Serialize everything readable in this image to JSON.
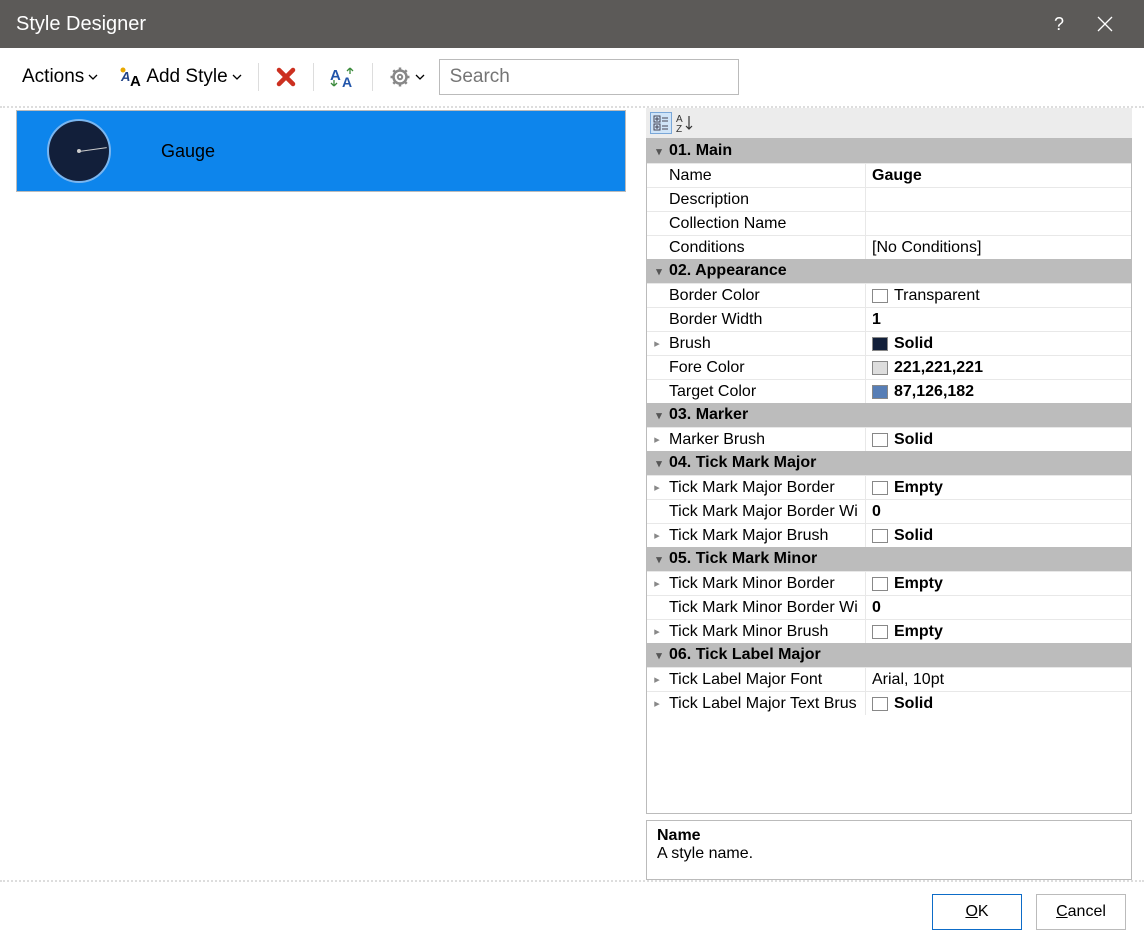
{
  "window": {
    "title": "Style Designer"
  },
  "toolbar": {
    "actions_label": "Actions",
    "add_style_label": "Add Style",
    "search_placeholder": "Search"
  },
  "colors": {
    "selection_bg": "#0d85ec",
    "category_bg": "#bcbcbc",
    "brush_swatch": "#121f3a",
    "fore_swatch": "#dddddd",
    "target_swatch": "#577eb6",
    "transparent_swatch": "#ffffff",
    "marker_swatch": "#ffffff"
  },
  "leftPanel": {
    "gauge_label": "Gauge"
  },
  "propertyGrid": {
    "categories": [
      {
        "title": "01. Main",
        "rows": [
          {
            "label": "Name",
            "value": "Gauge",
            "bold": true
          },
          {
            "label": "Description",
            "value": ""
          },
          {
            "label": "Collection Name",
            "value": ""
          },
          {
            "label": "Conditions",
            "value": "[No Conditions]"
          }
        ]
      },
      {
        "title": "02. Appearance",
        "rows": [
          {
            "label": "Border Color",
            "value": "Transparent",
            "swatch": "#ffffff"
          },
          {
            "label": "Border Width",
            "value": "1",
            "bold": true
          },
          {
            "label": "Brush",
            "value": "Solid",
            "bold": true,
            "expandable": true,
            "swatch": "#121f3a"
          },
          {
            "label": "Fore Color",
            "value": "221,221,221",
            "bold": true,
            "swatch": "#dddddd"
          },
          {
            "label": "Target Color",
            "value": "87,126,182",
            "bold": true,
            "swatch": "#577eb6"
          }
        ]
      },
      {
        "title": "03. Marker",
        "rows": [
          {
            "label": "Marker Brush",
            "value": "Solid",
            "bold": true,
            "expandable": true,
            "swatch": "#ffffff"
          }
        ]
      },
      {
        "title": "04. Tick  Mark  Major",
        "rows": [
          {
            "label": "Tick Mark Major Border",
            "value": "Empty",
            "bold": true,
            "expandable": true,
            "swatch": "#ffffff"
          },
          {
            "label": "Tick Mark Major Border Width",
            "value": "0",
            "bold": true,
            "labelShort": "Tick Mark Major Border Wi"
          },
          {
            "label": "Tick Mark Major Brush",
            "value": "Solid",
            "bold": true,
            "expandable": true,
            "swatch": "#ffffff"
          }
        ]
      },
      {
        "title": "05. Tick  Mark  Minor",
        "rows": [
          {
            "label": "Tick Mark Minor Border",
            "value": "Empty",
            "bold": true,
            "expandable": true,
            "swatch": "#ffffff"
          },
          {
            "label": "Tick Mark Minor Border Width",
            "value": "0",
            "bold": true,
            "labelShort": "Tick Mark Minor Border Wi"
          },
          {
            "label": "Tick Mark Minor Brush",
            "value": "Empty",
            "bold": true,
            "expandable": true,
            "swatch": "#ffffff"
          }
        ]
      },
      {
        "title": "06. Tick  Label  Major",
        "rows": [
          {
            "label": "Tick Label Major Font",
            "value": "Arial, 10pt",
            "expandable": true
          },
          {
            "label": "Tick Label Major Text Brush",
            "value": "Solid",
            "bold": true,
            "expandable": true,
            "swatch": "#ffffff",
            "labelShort": "Tick Label Major Text Brus"
          }
        ]
      }
    ]
  },
  "description": {
    "title": "Name",
    "text": "A style name."
  },
  "footer": {
    "ok_label": "OK",
    "cancel_label": "Cancel"
  }
}
